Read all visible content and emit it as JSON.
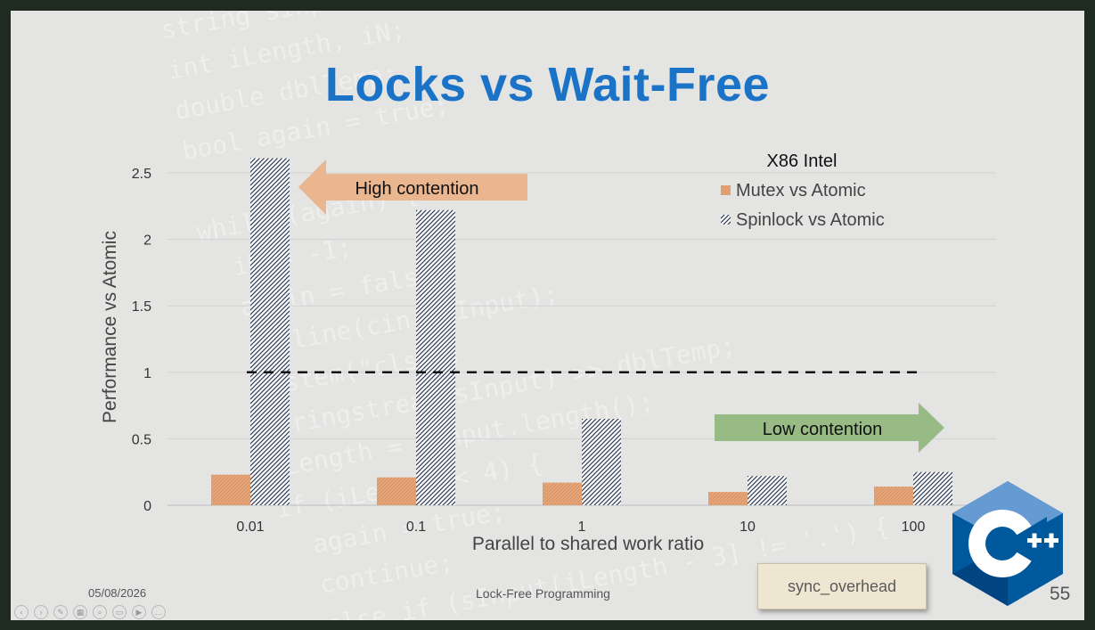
{
  "slide": {
    "title": "Locks vs Wait-Free",
    "footer_date": "05/08/2026",
    "footer_center": "Lock-Free Programming",
    "page_number": "55",
    "tag_label": "sync_overhead",
    "logo_text": "C++",
    "colors": {
      "title": "#1a73c6",
      "mutex": "#e7a77a",
      "spinlock": "#2b3a55",
      "high_arrow": "#e9b690",
      "low_arrow": "#98bb86"
    }
  },
  "chart_data": {
    "type": "bar",
    "title": "",
    "xlabel": "Parallel to shared work ratio",
    "ylabel": "Performance vs Atomic",
    "categories": [
      "0.01",
      "0.1",
      "1",
      "10",
      "100"
    ],
    "ylim": [
      0,
      2.5
    ],
    "yticks": [
      "0",
      "0.5",
      "1",
      "1.5",
      "2",
      "2.5"
    ],
    "legend_title": "X86 Intel",
    "legend_position": "top-right",
    "series": [
      {
        "name": "Mutex vs Atomic",
        "values": [
          0.23,
          0.21,
          0.17,
          0.1,
          0.14
        ]
      },
      {
        "name": "Spinlock vs Atomic",
        "values": [
          2.61,
          2.22,
          0.65,
          0.22,
          0.25
        ]
      }
    ],
    "reference_line": 1,
    "annotations": {
      "high": "High contention",
      "low": "Low contention"
    },
    "grid": true
  }
}
